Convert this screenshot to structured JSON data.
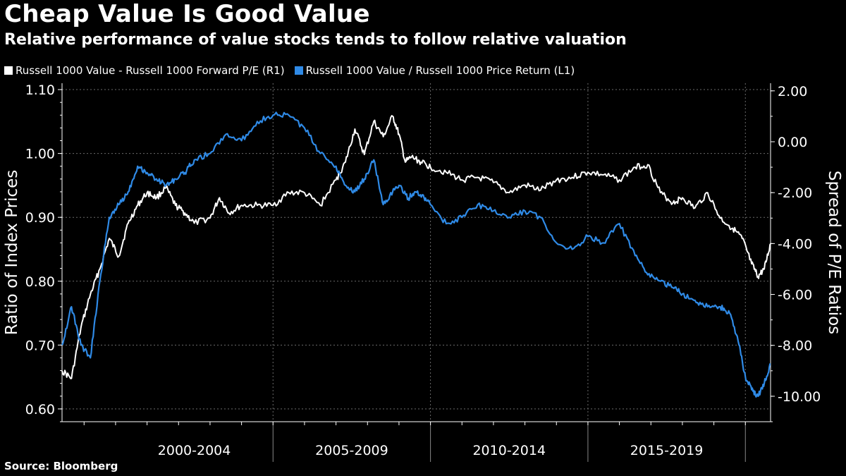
{
  "title": "Cheap Value Is Good Value",
  "subtitle": "Relative performance of value stocks tends to follow relative valuation",
  "source": "Source: Bloomberg",
  "colors": {
    "background": "#000000",
    "white_series": "#ffffff",
    "blue_series": "#2f8ae6",
    "grid": "#6b6b6b"
  },
  "chart_data": {
    "type": "line",
    "title": "Cheap Value Is Good Value",
    "ylabel_left": "Ratio of Index Prices",
    "ylabel_right": "Spread of P/E Ratios",
    "x_range": [
      1998.3,
      2020.8
    ],
    "ylim_left": [
      0.58,
      1.11
    ],
    "ylim_right": [
      -11.0,
      2.3
    ],
    "left_ticks": [
      "0.60",
      "0.70",
      "0.80",
      "0.90",
      "1.00",
      "1.10"
    ],
    "left_tick_values": [
      0.6,
      0.7,
      0.8,
      0.9,
      1.0,
      1.1
    ],
    "right_ticks": [
      "-10.00",
      "-8.00",
      "-6.00",
      "-4.00",
      "-2.00",
      "0.00",
      "2.00"
    ],
    "right_tick_values": [
      -10,
      -8,
      -6,
      -4,
      -2,
      0,
      2
    ],
    "x_categories": [
      "2000-2004",
      "2005-2009",
      "2010-2014",
      "2015-2019"
    ],
    "x_category_centers": [
      2002.5,
      2007.5,
      2012.5,
      2017.5
    ],
    "x_separators": [
      2005,
      2010,
      2015,
      2020
    ],
    "legend_position": "top-left",
    "series": [
      {
        "name": "Russell 1000 Value - Russell 1000 Forward P/E (R1)",
        "axis": "right",
        "color": "#ffffff",
        "x": [
          1998.3,
          1998.6,
          1998.9,
          1999.2,
          1999.5,
          1999.8,
          2000.1,
          2000.4,
          2000.7,
          2001.0,
          2001.3,
          2001.6,
          2001.9,
          2002.2,
          2002.5,
          2003.0,
          2003.3,
          2003.6,
          2004.0,
          2004.5,
          2005.0,
          2005.5,
          2006.0,
          2006.5,
          2007.0,
          2007.3,
          2007.6,
          2007.9,
          2008.2,
          2008.5,
          2008.8,
          2009.0,
          2009.2,
          2009.4,
          2009.7,
          2010.0,
          2010.5,
          2011.0,
          2011.5,
          2012.0,
          2012.5,
          2013.0,
          2013.5,
          2014.0,
          2014.5,
          2015.0,
          2015.5,
          2016.0,
          2016.5,
          2016.9,
          2017.3,
          2017.7,
          2018.0,
          2018.4,
          2018.8,
          2019.2,
          2019.6,
          2019.9,
          2020.2,
          2020.4,
          2020.6,
          2020.8
        ],
        "y": [
          -9.0,
          -9.3,
          -7.3,
          -6.0,
          -5.0,
          -3.8,
          -4.5,
          -3.2,
          -2.5,
          -2.0,
          -2.2,
          -1.8,
          -2.5,
          -2.8,
          -3.2,
          -3.0,
          -2.2,
          -2.8,
          -2.5,
          -2.5,
          -2.5,
          -2.0,
          -2.0,
          -2.5,
          -1.5,
          -0.8,
          0.5,
          -0.5,
          0.8,
          0.2,
          1.0,
          0.3,
          -0.8,
          -0.6,
          -0.8,
          -1.0,
          -1.2,
          -1.5,
          -1.4,
          -1.6,
          -2.0,
          -1.7,
          -1.9,
          -1.5,
          -1.4,
          -1.2,
          -1.3,
          -1.5,
          -1.0,
          -0.9,
          -2.0,
          -2.4,
          -2.2,
          -2.6,
          -2.0,
          -3.0,
          -3.4,
          -3.8,
          -4.8,
          -5.3,
          -5.0,
          -4.0
        ]
      },
      {
        "name": "Russell 1000 Value / Russell 1000 Price Return (L1)",
        "axis": "left",
        "color": "#2f8ae6",
        "x": [
          1998.3,
          1998.6,
          1998.9,
          1999.2,
          1999.5,
          1999.8,
          2000.1,
          2000.4,
          2000.7,
          2001.0,
          2001.3,
          2001.6,
          2001.9,
          2002.2,
          2002.5,
          2003.0,
          2003.5,
          2004.0,
          2004.5,
          2005.0,
          2005.5,
          2006.0,
          2006.5,
          2007.0,
          2007.3,
          2007.6,
          2007.9,
          2008.2,
          2008.5,
          2008.8,
          2009.0,
          2009.3,
          2009.5,
          2009.8,
          2010.0,
          2010.5,
          2011.0,
          2011.5,
          2012.0,
          2012.5,
          2013.0,
          2013.5,
          2014.0,
          2014.5,
          2015.0,
          2015.5,
          2016.0,
          2016.5,
          2016.9,
          2017.3,
          2017.7,
          2018.0,
          2018.4,
          2018.8,
          2019.2,
          2019.5,
          2019.8,
          2020.0,
          2020.2,
          2020.4,
          2020.6,
          2020.8
        ],
        "y": [
          0.7,
          0.76,
          0.7,
          0.68,
          0.8,
          0.9,
          0.92,
          0.94,
          0.98,
          0.97,
          0.96,
          0.95,
          0.96,
          0.97,
          0.99,
          1.0,
          1.03,
          1.02,
          1.05,
          1.06,
          1.06,
          1.04,
          1.0,
          0.98,
          0.95,
          0.94,
          0.96,
          0.99,
          0.92,
          0.94,
          0.95,
          0.93,
          0.94,
          0.93,
          0.92,
          0.89,
          0.9,
          0.92,
          0.91,
          0.9,
          0.91,
          0.9,
          0.86,
          0.85,
          0.87,
          0.86,
          0.89,
          0.84,
          0.81,
          0.8,
          0.79,
          0.78,
          0.77,
          0.76,
          0.76,
          0.75,
          0.7,
          0.65,
          0.63,
          0.62,
          0.64,
          0.67
        ]
      }
    ]
  }
}
